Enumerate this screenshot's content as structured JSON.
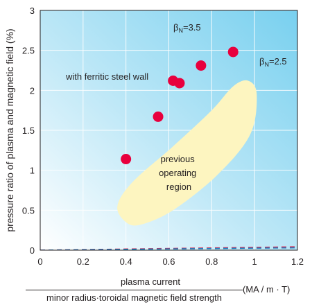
{
  "chart_data": {
    "type": "scatter",
    "ylabel": "pressure ratio of plasma and magnetic field (%)",
    "xlabel_numerator": "plasma current",
    "xlabel_denominator": "minor radius·toroidal magnetic field strength",
    "xlabel_unit": "(MA / m · T)",
    "xlim": [
      0,
      1.2
    ],
    "ylim": [
      0,
      3
    ],
    "x_ticks": [
      "0",
      "0.2",
      "0.4",
      "0.6",
      "0.8",
      "1",
      "1.2"
    ],
    "y_ticks": [
      "0",
      "0.5",
      "1",
      "1.5",
      "2",
      "2.5",
      "3"
    ],
    "grid": true,
    "points": {
      "label": "with ferritic steel wall",
      "color": "#e8003d",
      "x": [
        0.4,
        0.55,
        0.62,
        0.65,
        0.75,
        0.9
      ],
      "y": [
        1.14,
        1.67,
        2.12,
        2.09,
        2.31,
        2.48
      ]
    },
    "lines": [
      {
        "symbol": "β",
        "subscript": "N",
        "value_text": "=3.5",
        "slope": 3.5,
        "color": "#d6264d"
      },
      {
        "symbol": "β",
        "subscript": "N",
        "value_text": "=2.5",
        "slope": 2.5,
        "color": "#1f7fc0"
      }
    ],
    "region": {
      "label_lines": [
        "previous",
        "operating",
        "region"
      ],
      "color": "#fdf5c0",
      "outline": [
        [
          0.4,
          0.35
        ],
        [
          0.36,
          0.55
        ],
        [
          0.43,
          0.85
        ],
        [
          0.62,
          1.3
        ],
        [
          0.8,
          1.75
        ],
        [
          0.9,
          2.05
        ],
        [
          0.97,
          2.12
        ],
        [
          1.01,
          1.95
        ],
        [
          0.98,
          1.45
        ],
        [
          0.83,
          0.95
        ],
        [
          0.62,
          0.5
        ],
        [
          0.47,
          0.32
        ]
      ]
    },
    "colors": {
      "bg_top_right": "#78d0ef",
      "bg_bottom_left": "#ffffff",
      "grid": "#ffffff"
    }
  }
}
